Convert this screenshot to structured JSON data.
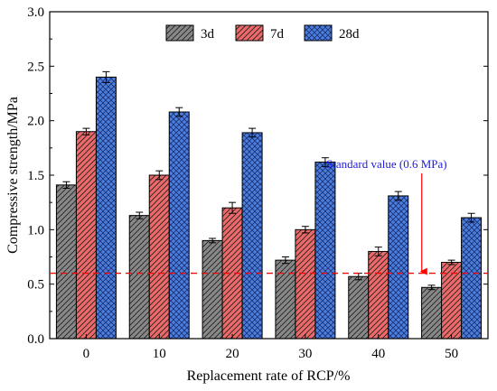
{
  "chart_data": {
    "type": "bar",
    "categories": [
      "0",
      "10",
      "20",
      "30",
      "40",
      "50"
    ],
    "xlabel": "Replacement rate of RCP/%",
    "ylabel": "Compressive strength/MPa",
    "ylim": [
      0.0,
      3.0
    ],
    "yticks": [
      "0.0",
      "0.5",
      "1.0",
      "1.5",
      "2.0",
      "2.5",
      "3.0"
    ],
    "legend_position": "top-center",
    "series": [
      {
        "name": "3d",
        "values": [
          1.41,
          1.13,
          0.9,
          0.72,
          0.57,
          0.47
        ],
        "errors": [
          0.03,
          0.03,
          0.02,
          0.03,
          0.03,
          0.02
        ],
        "color": "#888888",
        "pattern": "hatch-diagonal"
      },
      {
        "name": "7d",
        "values": [
          1.9,
          1.5,
          1.2,
          1.0,
          0.8,
          0.7
        ],
        "errors": [
          0.03,
          0.04,
          0.05,
          0.03,
          0.04,
          0.02
        ],
        "color": "#ee6a6a",
        "pattern": "hatch-diagonal"
      },
      {
        "name": "28d",
        "values": [
          2.4,
          2.08,
          1.89,
          1.62,
          1.31,
          1.11
        ],
        "errors": [
          0.05,
          0.04,
          0.04,
          0.04,
          0.04,
          0.04
        ],
        "color": "#4a7fe0",
        "pattern": "crosshatch"
      }
    ],
    "reference_line": {
      "value": 0.6,
      "color": "#ff0000",
      "style": "dashed"
    },
    "annotation": {
      "text": "Standard value (0.6 MPa)",
      "color": "#1a1ae6",
      "arrow_to": [
        40,
        0.6
      ]
    }
  }
}
